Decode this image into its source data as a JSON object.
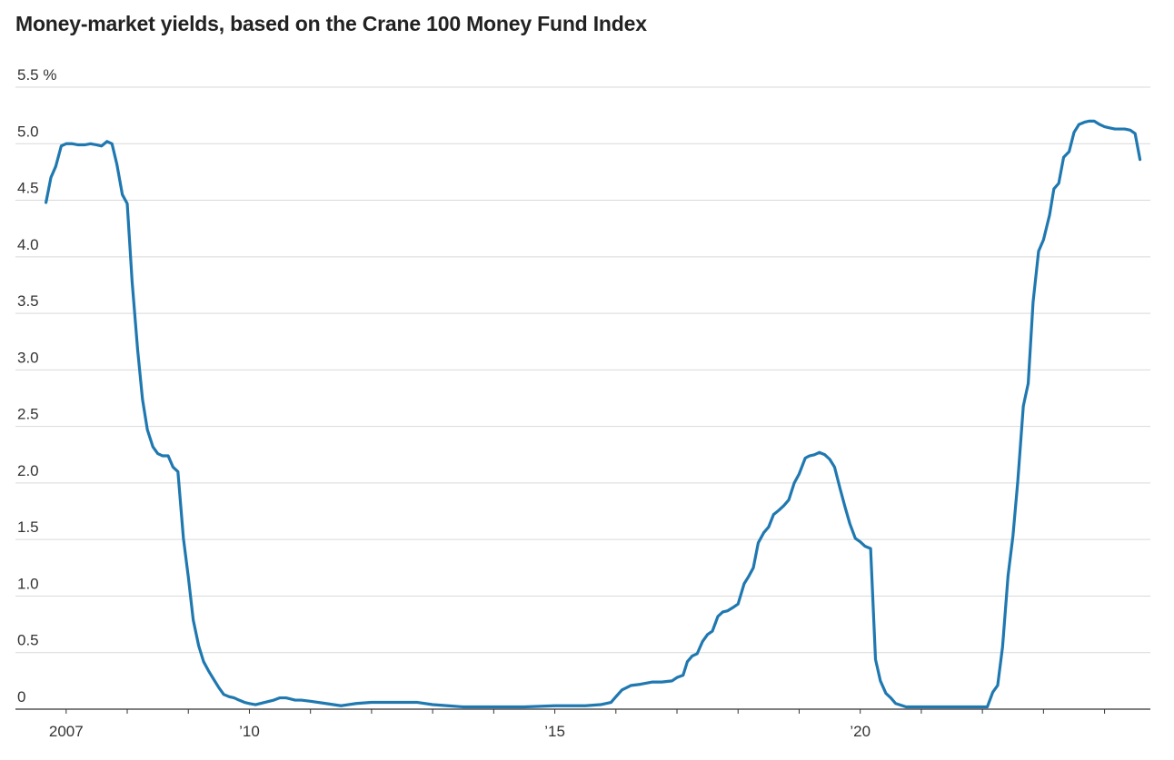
{
  "chart_data": {
    "type": "line",
    "title": "Money-market yields, based on the Crane 100 Money Fund Index",
    "xlabel": "",
    "ylabel": "",
    "y_unit": "%",
    "ylim": [
      0,
      5.5
    ],
    "yticks": [
      0,
      0.5,
      1.0,
      1.5,
      2.0,
      2.5,
      3.0,
      3.5,
      4.0,
      4.5,
      5.0,
      5.5
    ],
    "ytick_labels": [
      "0",
      "0.5",
      "1.0",
      "1.5",
      "2.0",
      "2.5",
      "3.0",
      "3.5",
      "4.0",
      "4.5",
      "5.0",
      "5.5 %"
    ],
    "xlim": [
      2006.17,
      2024.75
    ],
    "xticks": [
      2007,
      2010,
      2015,
      2020
    ],
    "xtick_labels": [
      "2007",
      "’10",
      "’15",
      "’20"
    ],
    "grid": true,
    "color": "#1f78b0",
    "series": [
      {
        "x": [
          2006.67,
          2006.75,
          2006.83,
          2006.92,
          2007.0,
          2007.1,
          2007.2,
          2007.3,
          2007.4,
          2007.5,
          2007.58,
          2007.67,
          2007.75,
          2007.83,
          2007.92,
          2008.0,
          2008.08,
          2008.17,
          2008.25,
          2008.33,
          2008.42,
          2008.5,
          2008.58,
          2008.67,
          2008.75,
          2008.83,
          2008.92,
          2009.0,
          2009.08,
          2009.17,
          2009.25,
          2009.33,
          2009.42,
          2009.5,
          2009.58,
          2009.67,
          2009.75,
          2009.83,
          2009.92,
          2010.0,
          2010.1,
          2010.25,
          2010.4,
          2010.5,
          2010.6,
          2010.75,
          2010.85,
          2011.0,
          2011.25,
          2011.5,
          2011.75,
          2012.0,
          2012.25,
          2012.5,
          2012.75,
          2013.0,
          2013.25,
          2013.5,
          2013.75,
          2014.0,
          2014.5,
          2015.0,
          2015.5,
          2015.75,
          2015.92,
          2016.0,
          2016.1,
          2016.25,
          2016.4,
          2016.5,
          2016.6,
          2016.75,
          2016.92,
          2017.0,
          2017.1,
          2017.17,
          2017.25,
          2017.33,
          2017.42,
          2017.5,
          2017.58,
          2017.67,
          2017.75,
          2017.83,
          2017.92,
          2018.0,
          2018.1,
          2018.17,
          2018.25,
          2018.33,
          2018.42,
          2018.5,
          2018.58,
          2018.67,
          2018.75,
          2018.83,
          2018.92,
          2019.0,
          2019.1,
          2019.17,
          2019.25,
          2019.33,
          2019.42,
          2019.5,
          2019.58,
          2019.67,
          2019.75,
          2019.83,
          2019.92,
          2020.0,
          2020.08,
          2020.17,
          2020.25,
          2020.33,
          2020.42,
          2020.5,
          2020.58,
          2020.75,
          2021.0,
          2021.5,
          2022.0,
          2022.08,
          2022.17,
          2022.25,
          2022.33,
          2022.42,
          2022.5,
          2022.58,
          2022.67,
          2022.75,
          2022.83,
          2022.92,
          2023.0,
          2023.1,
          2023.17,
          2023.25,
          2023.33,
          2023.42,
          2023.5,
          2023.58,
          2023.67,
          2023.75,
          2023.83,
          2023.92,
          2024.0,
          2024.08,
          2024.17,
          2024.25,
          2024.33,
          2024.42,
          2024.5,
          2024.58
        ],
        "y": [
          4.48,
          4.7,
          4.8,
          4.98,
          5.0,
          5.0,
          4.99,
          4.99,
          5.0,
          4.99,
          4.98,
          5.02,
          5.0,
          4.82,
          4.55,
          4.47,
          3.78,
          3.18,
          2.74,
          2.47,
          2.32,
          2.26,
          2.24,
          2.24,
          2.14,
          2.1,
          1.51,
          1.17,
          0.79,
          0.56,
          0.42,
          0.34,
          0.26,
          0.19,
          0.13,
          0.11,
          0.1,
          0.08,
          0.06,
          0.05,
          0.04,
          0.06,
          0.08,
          0.1,
          0.1,
          0.08,
          0.08,
          0.07,
          0.05,
          0.03,
          0.05,
          0.06,
          0.06,
          0.06,
          0.06,
          0.04,
          0.03,
          0.02,
          0.02,
          0.02,
          0.02,
          0.03,
          0.03,
          0.04,
          0.06,
          0.11,
          0.17,
          0.21,
          0.22,
          0.23,
          0.24,
          0.24,
          0.25,
          0.28,
          0.3,
          0.42,
          0.47,
          0.49,
          0.6,
          0.66,
          0.69,
          0.82,
          0.86,
          0.87,
          0.9,
          0.93,
          1.11,
          1.17,
          1.25,
          1.47,
          1.56,
          1.61,
          1.72,
          1.76,
          1.8,
          1.85,
          2.0,
          2.08,
          2.22,
          2.24,
          2.25,
          2.27,
          2.25,
          2.21,
          2.14,
          1.95,
          1.79,
          1.64,
          1.51,
          1.48,
          1.44,
          1.42,
          0.44,
          0.25,
          0.14,
          0.1,
          0.05,
          0.02,
          0.02,
          0.02,
          0.02,
          0.02,
          0.15,
          0.21,
          0.55,
          1.18,
          1.53,
          2.02,
          2.68,
          2.88,
          3.6,
          4.05,
          4.15,
          4.37,
          4.6,
          4.65,
          4.88,
          4.93,
          5.1,
          5.17,
          5.19,
          5.2,
          5.2,
          5.17,
          5.15,
          5.14,
          5.13,
          5.13,
          5.13,
          5.12,
          5.09,
          4.86
        ]
      }
    ]
  }
}
